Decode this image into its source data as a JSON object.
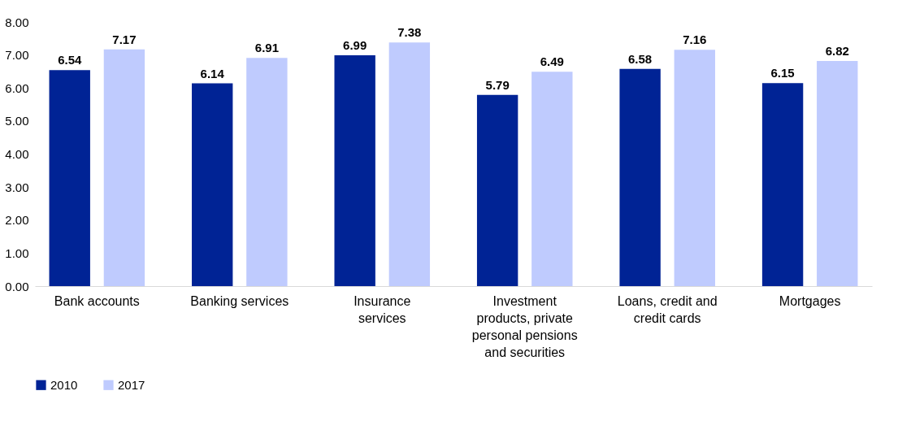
{
  "chart_data": {
    "type": "bar",
    "categories": [
      "Bank accounts",
      "Banking services",
      "Insurance services",
      "Investment products, private personal pensions and securities",
      "Loans, credit and credit cards",
      "Mortgages"
    ],
    "series": [
      {
        "name": "2010",
        "color": "#002395",
        "values": [
          6.54,
          6.14,
          6.99,
          5.79,
          6.58,
          6.15
        ]
      },
      {
        "name": "2017",
        "color": "#bfcbfe",
        "values": [
          7.17,
          6.91,
          7.38,
          6.49,
          7.16,
          6.82
        ]
      }
    ],
    "ylim": [
      0,
      8
    ],
    "yticks": [
      {
        "value": 0,
        "label": "0.00"
      },
      {
        "value": 1,
        "label": "1.00"
      },
      {
        "value": 2,
        "label": "2.00"
      },
      {
        "value": 3,
        "label": "3.00"
      },
      {
        "value": 4,
        "label": "4.00"
      },
      {
        "value": 5,
        "label": "5.00"
      },
      {
        "value": 6,
        "label": "6.00"
      },
      {
        "value": 7,
        "label": "7.00"
      },
      {
        "value": 8,
        "label": "8.00"
      }
    ],
    "data_labels": true,
    "grid": false,
    "legend": "bottom"
  }
}
